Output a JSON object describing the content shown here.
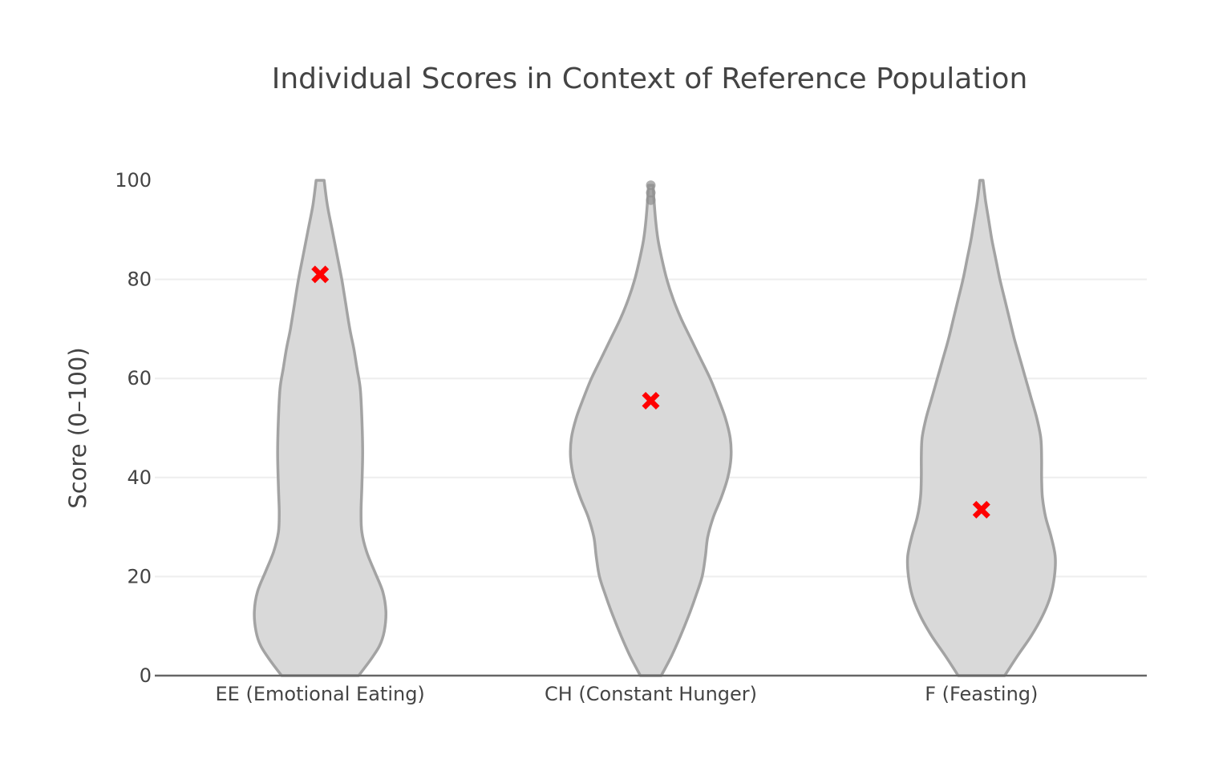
{
  "chart_data": {
    "type": "violin",
    "title": "Individual Scores in Context of Reference Population",
    "xlabel": "",
    "ylabel": "Score (0–100)",
    "ylim": [
      0,
      100
    ],
    "yticks": [
      0,
      20,
      40,
      60,
      80,
      100
    ],
    "ytick_labels": [
      "0",
      "20",
      "40",
      "60",
      "80",
      "100"
    ],
    "grid": true,
    "legend": "none",
    "categories": [
      "EE (Emotional Eating)",
      "CH (Constant Hunger)",
      "F (Feasting)"
    ],
    "colors": {
      "violin_fill": "#d9d9d9",
      "violin_line": "#a3a3a3",
      "individual_marker": "#ff0000",
      "grid": "#eeeeee",
      "axis": "#666666",
      "text": "#444444"
    },
    "series": [
      {
        "name": "Reference Population",
        "kind": "violin",
        "violins": [
          {
            "category": "EE (Emotional Eating)",
            "density_profile": [
              [
                0,
                0.48
              ],
              [
                3,
                0.62
              ],
              [
                6,
                0.74
              ],
              [
                9,
                0.8
              ],
              [
                13,
                0.82
              ],
              [
                17,
                0.78
              ],
              [
                21,
                0.68
              ],
              [
                25,
                0.58
              ],
              [
                29,
                0.52
              ],
              [
                33,
                0.51
              ],
              [
                38,
                0.52
              ],
              [
                45,
                0.53
              ],
              [
                52,
                0.52
              ],
              [
                58,
                0.5
              ],
              [
                62,
                0.46
              ],
              [
                66,
                0.42
              ],
              [
                70,
                0.37
              ],
              [
                75,
                0.32
              ],
              [
                80,
                0.27
              ],
              [
                85,
                0.21
              ],
              [
                90,
                0.15
              ],
              [
                95,
                0.09
              ],
              [
                100,
                0.05
              ]
            ],
            "outliers": []
          },
          {
            "category": "CH (Constant Hunger)",
            "density_profile": [
              [
                0,
                0.13
              ],
              [
                4,
                0.26
              ],
              [
                8,
                0.37
              ],
              [
                12,
                0.47
              ],
              [
                16,
                0.56
              ],
              [
                20,
                0.64
              ],
              [
                24,
                0.68
              ],
              [
                28,
                0.71
              ],
              [
                32,
                0.78
              ],
              [
                36,
                0.88
              ],
              [
                40,
                0.96
              ],
              [
                44,
                1.0
              ],
              [
                48,
                0.99
              ],
              [
                52,
                0.93
              ],
              [
                56,
                0.84
              ],
              [
                60,
                0.74
              ],
              [
                64,
                0.62
              ],
              [
                68,
                0.5
              ],
              [
                72,
                0.38
              ],
              [
                76,
                0.28
              ],
              [
                80,
                0.2
              ],
              [
                84,
                0.14
              ],
              [
                88,
                0.09
              ],
              [
                92,
                0.06
              ],
              [
                96,
                0.04
              ],
              [
                99,
                0.03
              ]
            ],
            "outliers": [
              96,
              97.5,
              99
            ]
          },
          {
            "category": "F (Feasting)",
            "density_profile": [
              [
                0,
                0.29
              ],
              [
                4,
                0.45
              ],
              [
                8,
                0.62
              ],
              [
                12,
                0.76
              ],
              [
                16,
                0.86
              ],
              [
                20,
                0.91
              ],
              [
                24,
                0.92
              ],
              [
                28,
                0.87
              ],
              [
                32,
                0.8
              ],
              [
                36,
                0.76
              ],
              [
                40,
                0.75
              ],
              [
                44,
                0.75
              ],
              [
                48,
                0.74
              ],
              [
                52,
                0.69
              ],
              [
                56,
                0.62
              ],
              [
                60,
                0.55
              ],
              [
                64,
                0.48
              ],
              [
                68,
                0.41
              ],
              [
                72,
                0.35
              ],
              [
                76,
                0.29
              ],
              [
                80,
                0.23
              ],
              [
                84,
                0.18
              ],
              [
                88,
                0.13
              ],
              [
                92,
                0.09
              ],
              [
                96,
                0.05
              ],
              [
                100,
                0.02
              ]
            ],
            "outliers": []
          }
        ]
      },
      {
        "name": "Individual Score",
        "kind": "marker",
        "marker_symbol": "x",
        "values": [
          81,
          55.5,
          33.5
        ]
      }
    ]
  }
}
